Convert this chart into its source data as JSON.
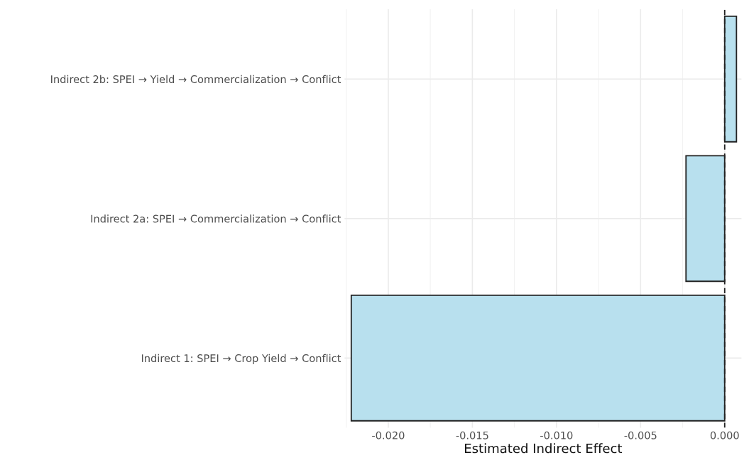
{
  "chart_data": {
    "type": "bar",
    "orientation": "horizontal",
    "xlabel": "Estimated Indirect Effect",
    "categories": [
      "Indirect 2b: SPEI → Yield → Commercialization → Conflict",
      "Indirect 2a: SPEI → Commercialization → Conflict",
      "Indirect 1: SPEI → Crop Yield → Conflict"
    ],
    "values": [
      0.0007,
      -0.0023,
      -0.0222
    ],
    "color": "#b8e0ee",
    "xlim": [
      -0.0226,
      0.001
    ],
    "xticks": [
      {
        "value": -0.02,
        "label": "-0.020"
      },
      {
        "value": -0.015,
        "label": "-0.015"
      },
      {
        "value": -0.01,
        "label": "-0.010"
      },
      {
        "value": -0.005,
        "label": "-0.005"
      },
      {
        "value": 0,
        "label": "0.000"
      }
    ],
    "ref_lines": [
      {
        "axis": "x",
        "value": 0,
        "line_style": "dashed",
        "color": "#222222"
      }
    ],
    "grid": true
  }
}
